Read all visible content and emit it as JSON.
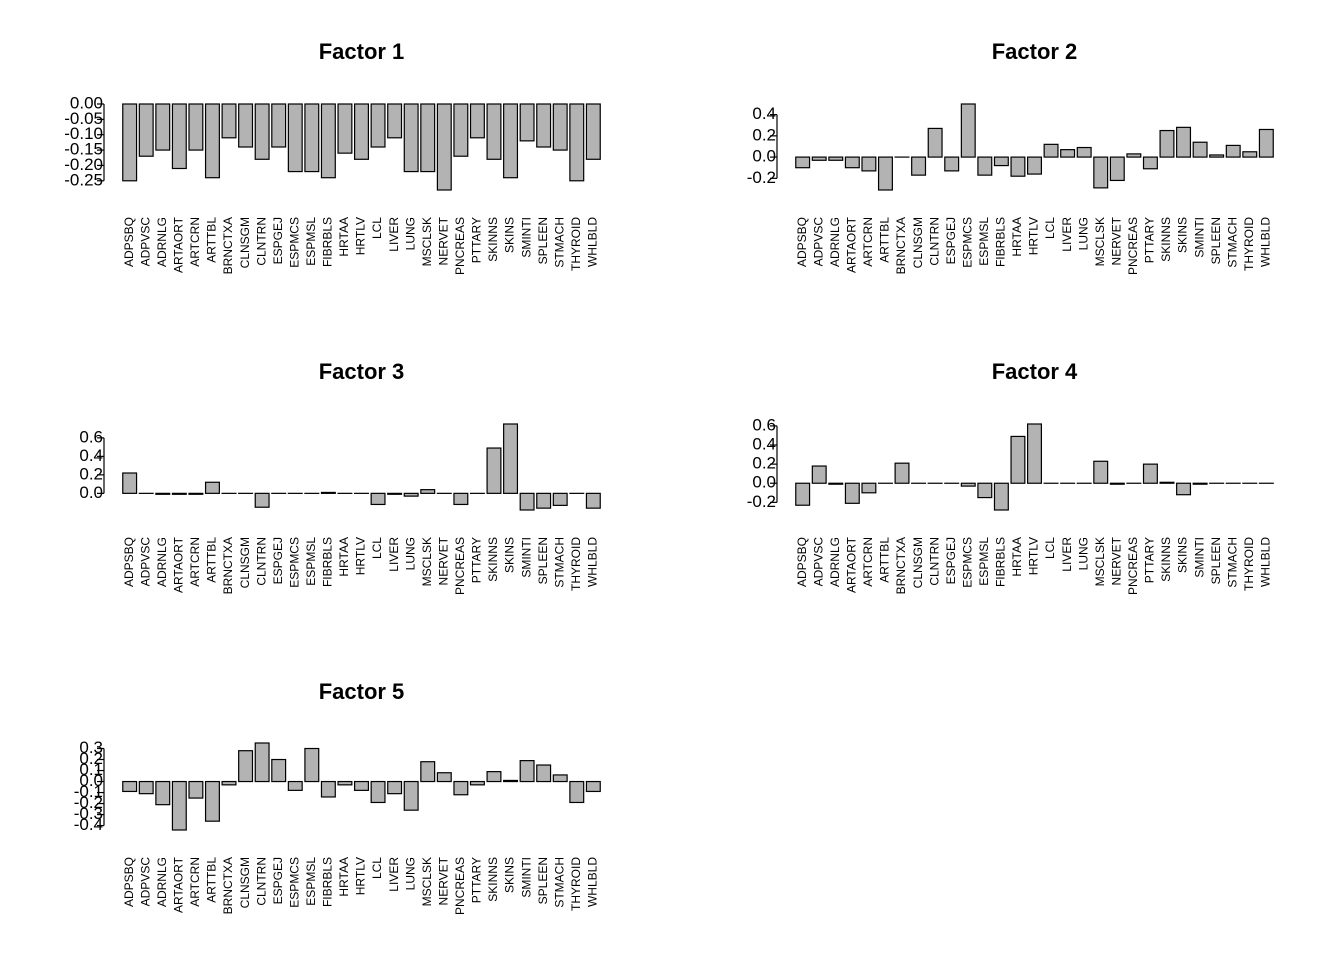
{
  "chart_data": [
    {
      "type": "bar",
      "title": "Factor 1",
      "color": "#b3b3b3",
      "categories": [
        "ADPSBQ",
        "ADPVSC",
        "ADRNLG",
        "ARTAORT",
        "ARTCRN",
        "ARTTBL",
        "BRNCTXA",
        "CLNSGM",
        "CLNTRN",
        "ESPGEJ",
        "ESPMCS",
        "ESPMSL",
        "FIBRBLS",
        "HRTAA",
        "HRTLV",
        "LCL",
        "LIVER",
        "LUNG",
        "MSCLSK",
        "NERVET",
        "PNCREAS",
        "PTTARY",
        "SKINNS",
        "SKINS",
        "SMINTI",
        "SPLEEN",
        "STMACH",
        "THYROID",
        "WHLBLD"
      ],
      "values": [
        -0.25,
        -0.17,
        -0.15,
        -0.21,
        -0.15,
        -0.24,
        -0.11,
        -0.14,
        -0.18,
        -0.14,
        -0.22,
        -0.22,
        -0.24,
        -0.16,
        -0.18,
        -0.14,
        -0.11,
        -0.22,
        -0.22,
        -0.28,
        -0.17,
        -0.11,
        -0.18,
        -0.24,
        -0.12,
        -0.14,
        -0.15,
        -0.25,
        -0.18
      ],
      "ylim": [
        -0.28,
        0
      ],
      "yticks": [
        {
          "value": -0.25,
          "label": "-0.25"
        },
        {
          "value": -0.2,
          "label": "-0.20"
        },
        -0.15,
        {
          "value": -0.1,
          "label": "-0.10"
        },
        -0.05,
        {
          "value": 0,
          "label": "0.00"
        }
      ]
    },
    {
      "type": "bar",
      "title": "Factor 2",
      "color": "#b3b3b3",
      "categories": [
        "ADPSBQ",
        "ADPVSC",
        "ADRNLG",
        "ARTAORT",
        "ARTCRN",
        "ARTTBL",
        "BRNCTXA",
        "CLNSGM",
        "CLNTRN",
        "ESPGEJ",
        "ESPMCS",
        "ESPMSL",
        "FIBRBLS",
        "HRTAA",
        "HRTLV",
        "LCL",
        "LIVER",
        "LUNG",
        "MSCLSK",
        "NERVET",
        "PNCREAS",
        "PTTARY",
        "SKINNS",
        "SKINS",
        "SMINTI",
        "SPLEEN",
        "STMACH",
        "THYROID",
        "WHLBLD"
      ],
      "values": [
        -0.1,
        -0.03,
        -0.03,
        -0.1,
        -0.13,
        -0.31,
        0,
        -0.17,
        0.27,
        -0.13,
        0.5,
        -0.17,
        -0.08,
        -0.18,
        -0.16,
        0.12,
        0.07,
        0.09,
        -0.29,
        -0.22,
        0.03,
        -0.11,
        0.25,
        0.28,
        0.14,
        0.02,
        0.11,
        0.05,
        0.26
      ],
      "ylim": [
        -0.31,
        0.5
      ],
      "yticks": [
        -0.2,
        {
          "value": 0,
          "label": "0.0"
        },
        0.2,
        0.4
      ]
    },
    {
      "type": "bar",
      "title": "Factor 3",
      "color": "#b3b3b3",
      "categories": [
        "ADPSBQ",
        "ADPVSC",
        "ADRNLG",
        "ARTAORT",
        "ARTCRN",
        "ARTTBL",
        "BRNCTXA",
        "CLNSGM",
        "CLNTRN",
        "ESPGEJ",
        "ESPMCS",
        "ESPMSL",
        "FIBRBLS",
        "HRTAA",
        "HRTLV",
        "LCL",
        "LIVER",
        "LUNG",
        "MSCLSK",
        "NERVET",
        "PNCREAS",
        "PTTARY",
        "SKINNS",
        "SKINS",
        "SMINTI",
        "SPLEEN",
        "STMACH",
        "THYROID",
        "WHLBLD"
      ],
      "values": [
        0.22,
        0,
        -0.01,
        -0.01,
        -0.01,
        0.12,
        0,
        0,
        -0.15,
        0,
        0,
        0,
        0.01,
        0,
        0,
        -0.12,
        -0.01,
        -0.03,
        0.04,
        0,
        -0.12,
        0,
        0.49,
        0.75,
        -0.18,
        -0.16,
        -0.13,
        0,
        -0.16
      ],
      "ylim": [
        -0.18,
        0.75
      ],
      "yticks": [
        {
          "value": 0,
          "label": "0.0"
        },
        0.2,
        0.4,
        0.6
      ]
    },
    {
      "type": "bar",
      "title": "Factor 4",
      "color": "#b3b3b3",
      "categories": [
        "ADPSBQ",
        "ADPVSC",
        "ADRNLG",
        "ARTAORT",
        "ARTCRN",
        "ARTTBL",
        "BRNCTXA",
        "CLNSGM",
        "CLNTRN",
        "ESPGEJ",
        "ESPMCS",
        "ESPMSL",
        "FIBRBLS",
        "HRTAA",
        "HRTLV",
        "LCL",
        "LIVER",
        "LUNG",
        "MSCLSK",
        "NERVET",
        "PNCREAS",
        "PTTARY",
        "SKINNS",
        "SKINS",
        "SMINTI",
        "SPLEEN",
        "STMACH",
        "THYROID",
        "WHLBLD"
      ],
      "values": [
        -0.23,
        0.18,
        -0.01,
        -0.21,
        -0.1,
        0,
        0.21,
        0,
        0,
        0,
        -0.03,
        -0.15,
        -0.28,
        0.49,
        0.62,
        0,
        0,
        0,
        0.23,
        -0.01,
        0,
        0.2,
        0.01,
        -0.12,
        -0.01,
        0,
        0,
        0,
        0
      ],
      "ylim": [
        -0.28,
        0.62
      ],
      "yticks": [
        -0.2,
        {
          "value": 0,
          "label": "0.0"
        },
        0.2,
        0.4,
        0.6
      ]
    },
    {
      "type": "bar",
      "title": "Factor 5",
      "color": "#b3b3b3",
      "categories": [
        "ADPSBQ",
        "ADPVSC",
        "ADRNLG",
        "ARTAORT",
        "ARTCRN",
        "ARTTBL",
        "BRNCTXA",
        "CLNSGM",
        "CLNTRN",
        "ESPGEJ",
        "ESPMCS",
        "ESPMSL",
        "FIBRBLS",
        "HRTAA",
        "HRTLV",
        "LCL",
        "LIVER",
        "LUNG",
        "MSCLSK",
        "NERVET",
        "PNCREAS",
        "PTTARY",
        "SKINNS",
        "SKINS",
        "SMINTI",
        "SPLEEN",
        "STMACH",
        "THYROID",
        "WHLBLD"
      ],
      "values": [
        -0.09,
        -0.11,
        -0.21,
        -0.44,
        -0.15,
        -0.36,
        -0.03,
        0.28,
        0.35,
        0.2,
        -0.08,
        0.3,
        -0.14,
        -0.03,
        -0.08,
        -0.19,
        -0.11,
        -0.26,
        0.18,
        0.08,
        -0.12,
        -0.03,
        0.09,
        0.01,
        0.19,
        0.15,
        0.06,
        -0.19,
        -0.09
      ],
      "ylim": [
        -0.44,
        0.35
      ],
      "yticks": [
        -0.4,
        -0.3,
        -0.2,
        -0.1,
        {
          "value": 0,
          "label": "0.0"
        },
        0.1,
        0.2,
        0.3
      ]
    }
  ]
}
